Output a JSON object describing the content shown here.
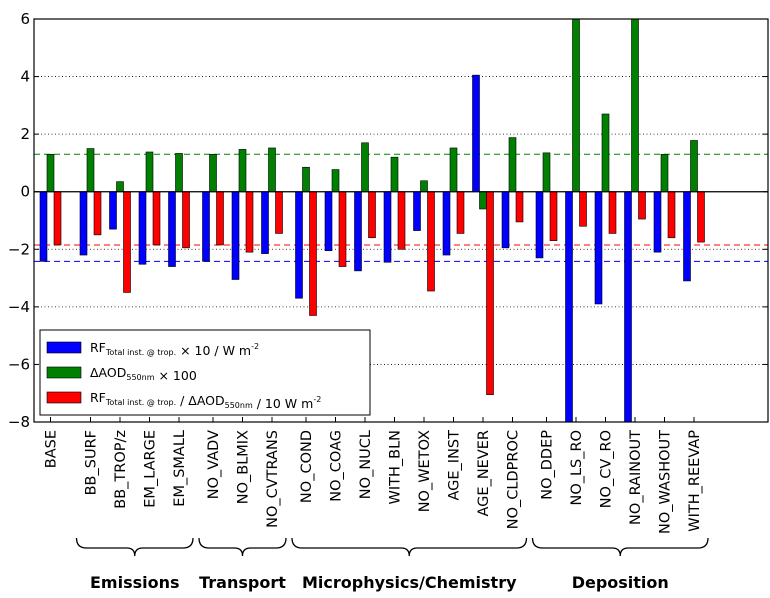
{
  "chart_data": {
    "type": "bar",
    "ylim": [
      -8,
      6
    ],
    "yticks": [
      -8,
      -6,
      -4,
      -2,
      0,
      2,
      4,
      6
    ],
    "grid": "dotted horizontal at non-zero ticks",
    "legend_placement": "lower-left",
    "categories": [
      "BASE",
      "BB_SURF",
      "BB_TROP/z",
      "EM_LARGE",
      "EM_SMALL",
      "NO_VADV",
      "NO_BLMIX",
      "NO_CVTRANS",
      "NO_COND",
      "NO_COAG",
      "NO_NUCL",
      "WITH_BLN",
      "NO_WETOX",
      "AGE_INST",
      "AGE_NEVER",
      "NO_CLDPROC",
      "NO_DDEP",
      "NO_LS_RO",
      "NO_CV_RO",
      "NO_RAINOUT",
      "NO_WASHOUT",
      "WITH_REEVAP"
    ],
    "series": [
      {
        "name": "RF Total inst. @ trop. × 10 / W m-2",
        "color": "#0000ff",
        "values": [
          -2.42,
          -2.2,
          -1.3,
          -2.52,
          -2.6,
          -2.42,
          -3.05,
          -2.15,
          -3.7,
          -2.05,
          -2.75,
          -2.45,
          -1.35,
          -2.2,
          4.05,
          -1.95,
          -2.3,
          -8.0,
          -3.9,
          -8.0,
          -2.1,
          -3.1
        ]
      },
      {
        "name": "ΔAOD550nm × 100",
        "color": "#008000",
        "values": [
          1.3,
          1.5,
          0.35,
          1.38,
          1.33,
          1.3,
          1.47,
          1.52,
          0.85,
          0.77,
          1.7,
          1.2,
          0.38,
          1.52,
          -0.6,
          1.88,
          1.35,
          6.0,
          2.7,
          6.0,
          1.3,
          1.78
        ]
      },
      {
        "name": "RF Total inst. @ trop. / ΔAOD550nm / 10 W m-2",
        "color": "#ff0000",
        "values": [
          -1.85,
          -1.5,
          -3.5,
          -1.85,
          -1.95,
          -1.85,
          -2.1,
          -1.45,
          -4.3,
          -2.6,
          -1.6,
          -2.0,
          -3.45,
          -1.45,
          -7.05,
          -1.05,
          -1.7,
          -1.2,
          -1.45,
          -0.95,
          -1.6,
          -1.75
        ]
      }
    ],
    "reference_lines": [
      {
        "series": "RF Total inst. @ trop. × 10 / W m-2",
        "value": -2.42,
        "color": "#0000ff"
      },
      {
        "series": "ΔAOD550nm × 100",
        "value": 1.3,
        "color": "#008000"
      },
      {
        "series": "RF Total inst. @ trop. / ΔAOD550nm / 10 W m-2",
        "value": -1.85,
        "color": "#ff0000"
      }
    ],
    "groups": [
      {
        "label": "Emissions",
        "from": 1,
        "to": 4
      },
      {
        "label": "Transport",
        "from": 5,
        "to": 7
      },
      {
        "label": "Microphysics/Chemistry",
        "from": 8,
        "to": 15
      },
      {
        "label": "Deposition",
        "from": 16,
        "to": 21
      }
    ]
  },
  "legend": [
    {
      "main": "RF",
      "sub": "Total inst. @ trop.",
      "rest": " × 10 / W m",
      "sup": "-2",
      "color": "#0000ff"
    },
    {
      "main": "ΔAOD",
      "sub": "550nm",
      "rest": " × 100",
      "sup": "",
      "color": "#008000"
    },
    {
      "main": "RF",
      "sub": "Total inst. @ trop.",
      "rest": " / ΔAOD",
      "sub2": "550nm",
      "rest2": " / 10 W m",
      "sup": "-2",
      "color": "#ff0000"
    }
  ]
}
